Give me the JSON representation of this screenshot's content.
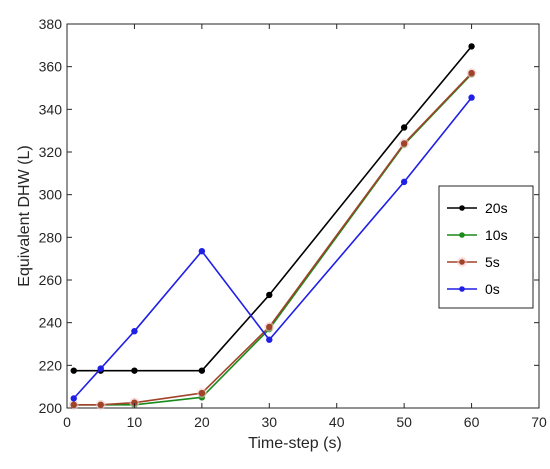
{
  "chart_data": {
    "type": "line",
    "title": "",
    "xlabel": "Time-step (s)",
    "ylabel": "Equivalent DHW (L)",
    "xlim": [
      0,
      70
    ],
    "ylim": [
      200,
      380
    ],
    "xticks": [
      0,
      10,
      20,
      30,
      40,
      50,
      60,
      70
    ],
    "yticks": [
      200,
      220,
      240,
      260,
      280,
      300,
      320,
      340,
      360,
      380
    ],
    "grid": false,
    "legend_position": "right",
    "x": [
      1,
      5,
      10,
      20,
      30,
      50,
      60
    ],
    "series": [
      {
        "name": "20s",
        "color": "#000000",
        "values": [
          217.5,
          217.5,
          217.5,
          217.5,
          253,
          331.5,
          369.5
        ]
      },
      {
        "name": "10s",
        "color": "#1a8a1a",
        "values": [
          201.5,
          201.5,
          201.5,
          205,
          237,
          323.5,
          356.5
        ]
      },
      {
        "name": "5s",
        "color": "#a0432a",
        "values": [
          201.5,
          201.5,
          202.5,
          207,
          238,
          324,
          357
        ]
      },
      {
        "name": "0s",
        "color": "#1f1fe6",
        "values": [
          204.5,
          218.5,
          236,
          273.5,
          232,
          306,
          345.5
        ]
      }
    ]
  }
}
